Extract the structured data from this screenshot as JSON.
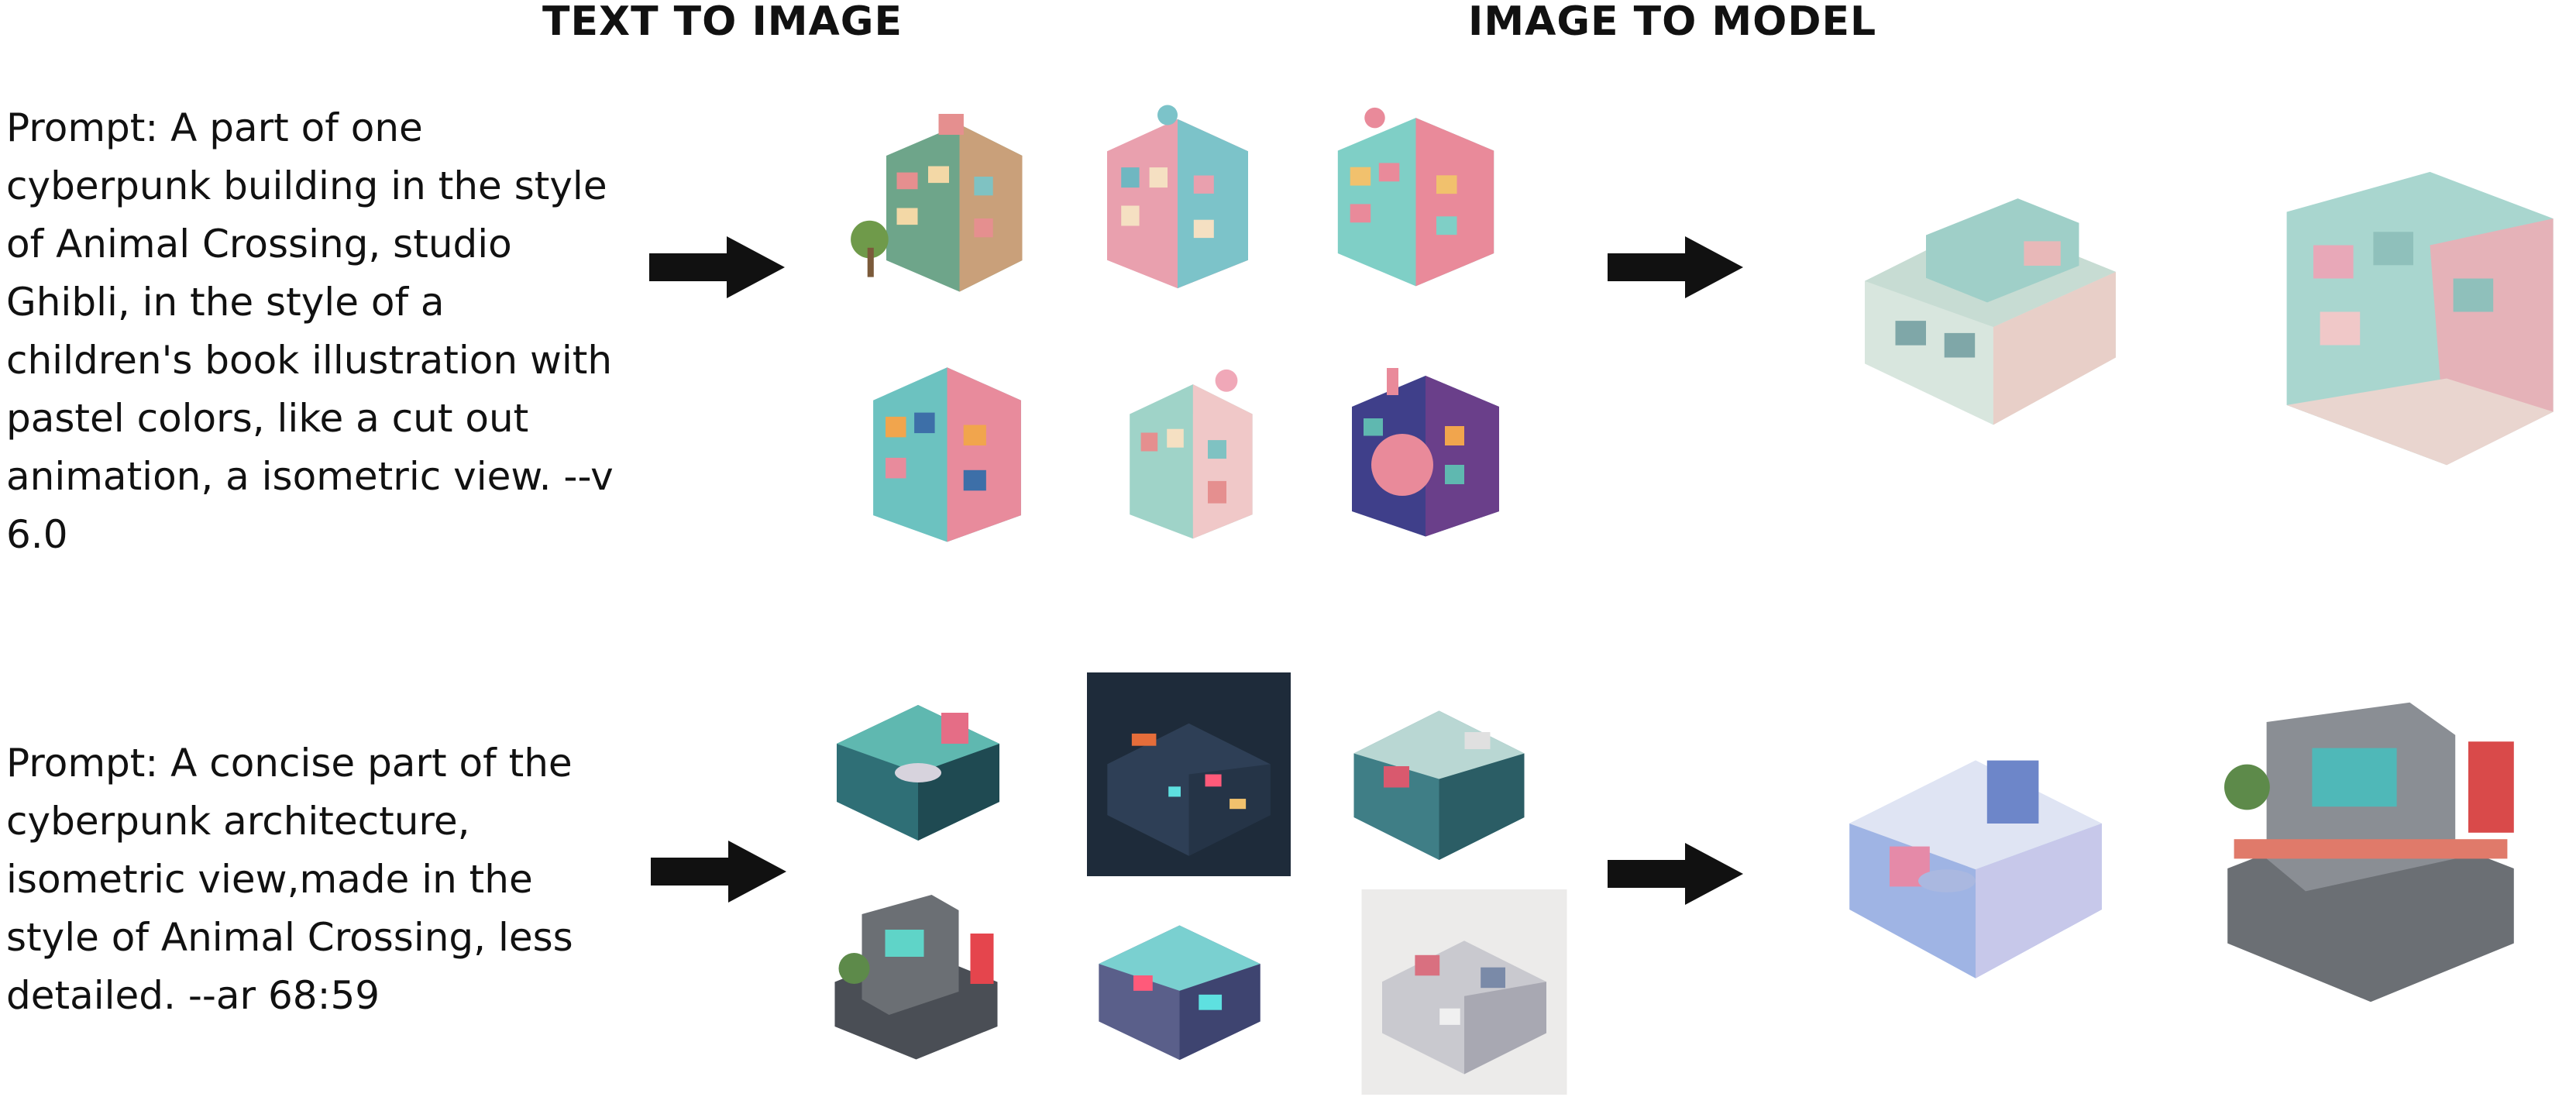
{
  "headings": {
    "text_to_image": "TEXT TO IMAGE",
    "image_to_model": "IMAGE TO MODEL"
  },
  "rows": [
    {
      "prompt": "Prompt: A part of one\ncyberpunk building in the style\nof Animal Crossing, studio\nGhibli, in the style of a\nchildren's book illustration with\npastel colors, like a cut out\nanimation, a isometric view. --v\n6.0"
    },
    {
      "prompt": "Prompt: A concise part of the\ncyberpunk architecture,\nisometric view,made in the\nstyle of Animal Crossing, less\ndetailed. --ar 68:59"
    }
  ],
  "colors": {
    "arrow": "#111111",
    "teal": "#5fb8b0",
    "pink": "#e98a9a",
    "navy": "#1e2b3a",
    "grey": "#6b6f74"
  }
}
